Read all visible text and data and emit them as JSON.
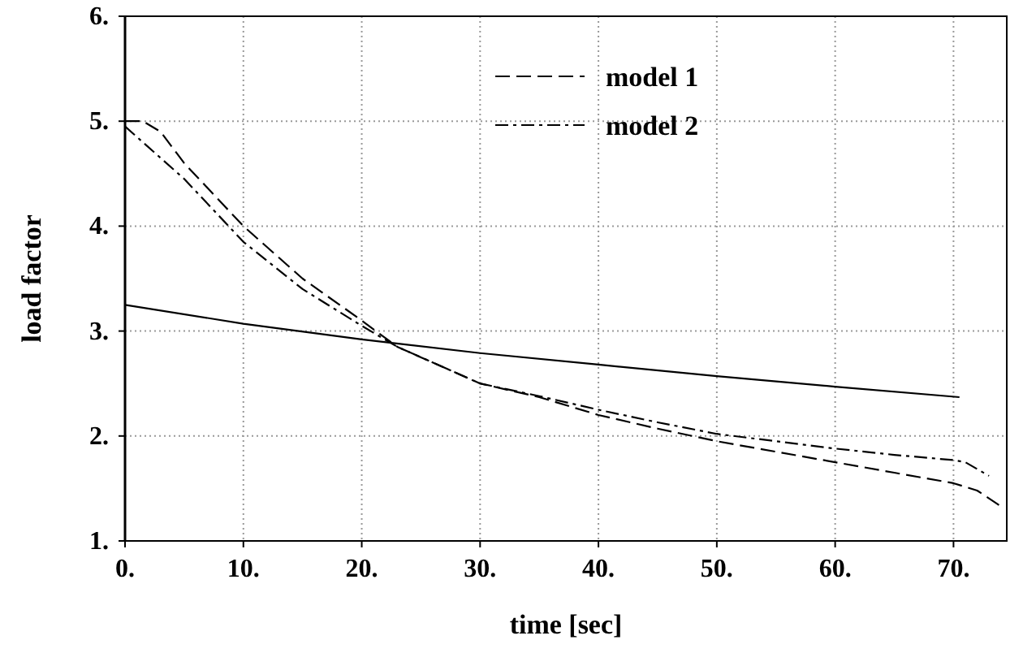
{
  "chart_data": {
    "type": "line",
    "xlabel": "time [sec]",
    "ylabel": "load factor",
    "xlim": [
      0,
      74.5
    ],
    "ylim": [
      1,
      6
    ],
    "xticks": [
      {
        "value": 0,
        "label": "0."
      },
      {
        "value": 10,
        "label": "10."
      },
      {
        "value": 20,
        "label": "20."
      },
      {
        "value": 30,
        "label": "30."
      },
      {
        "value": 40,
        "label": "40."
      },
      {
        "value": 50,
        "label": "50."
      },
      {
        "value": 60,
        "label": "60."
      },
      {
        "value": 70,
        "label": "70."
      }
    ],
    "yticks": [
      {
        "value": 1,
        "label": "1."
      },
      {
        "value": 2,
        "label": "2."
      },
      {
        "value": 3,
        "label": "3."
      },
      {
        "value": 4,
        "label": "4."
      },
      {
        "value": 5,
        "label": "5."
      },
      {
        "value": 6,
        "label": "6."
      }
    ],
    "grid": true,
    "legend": "top",
    "series": [
      {
        "color": "#000000",
        "line_style": "solid",
        "x": [
          0,
          10,
          20,
          30,
          40,
          50,
          60,
          70.5
        ],
        "values": [
          3.25,
          3.07,
          2.92,
          2.79,
          2.68,
          2.57,
          2.47,
          2.37
        ]
      },
      {
        "name": "model 1",
        "color": "#000000",
        "line_style": "dashed",
        "x": [
          0,
          1.5,
          3,
          5,
          10,
          15,
          20,
          23,
          25,
          30,
          35,
          40,
          45,
          50,
          55,
          60,
          65,
          70,
          72,
          74
        ],
        "values": [
          5.0,
          5.0,
          4.9,
          4.6,
          4.0,
          3.5,
          3.1,
          2.85,
          2.75,
          2.5,
          2.37,
          2.2,
          2.07,
          1.95,
          1.85,
          1.75,
          1.65,
          1.55,
          1.48,
          1.33
        ]
      },
      {
        "name": "model 2",
        "color": "#000000",
        "line_style": "dashdot",
        "x": [
          0,
          5,
          10,
          15,
          20,
          23,
          25,
          30,
          35,
          40,
          45,
          50,
          55,
          60,
          65,
          70,
          71,
          73
        ],
        "values": [
          4.95,
          4.45,
          3.85,
          3.4,
          3.05,
          2.85,
          2.75,
          2.5,
          2.38,
          2.25,
          2.13,
          2.02,
          1.95,
          1.88,
          1.82,
          1.77,
          1.75,
          1.62
        ]
      }
    ]
  }
}
